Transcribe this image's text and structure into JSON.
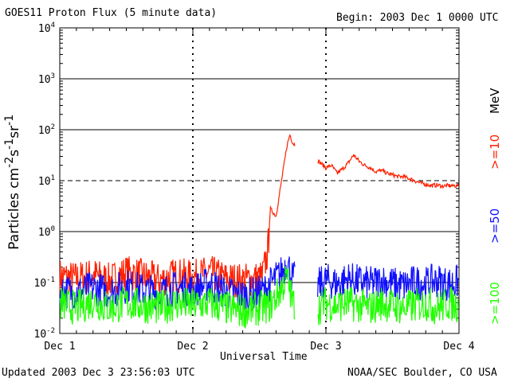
{
  "header": {
    "title": "GOES11 Proton Flux (5 minute data)",
    "begin": "Begin: 2003 Dec 1 0000 UTC"
  },
  "footer": {
    "updated": "Updated 2003 Dec  3 23:56:03 UTC",
    "credit": "NOAA/SEC Boulder, CO USA"
  },
  "chart_data": {
    "type": "line",
    "title": "GOES11 Proton Flux (5 minute data)",
    "xlabel": "Universal Time",
    "ylabel": "Particles cm-2s-1sr-1",
    "yscale": "log",
    "ylim": [
      0.01,
      10000
    ],
    "xlim": [
      0,
      72
    ],
    "x_unit": "hours since 2003 Dec 1 0000 UTC",
    "x_ticks": [
      {
        "value": 0,
        "label": "Dec 1"
      },
      {
        "value": 24,
        "label": "Dec 2"
      },
      {
        "value": 48,
        "label": "Dec 3"
      },
      {
        "value": 72,
        "label": "Dec 4"
      }
    ],
    "y_ticks": [
      {
        "value": 0.01,
        "base": "10",
        "exp": "-2"
      },
      {
        "value": 0.1,
        "base": "10",
        "exp": "-1"
      },
      {
        "value": 1,
        "base": "10",
        "exp": "0"
      },
      {
        "value": 10,
        "base": "10",
        "exp": "1"
      },
      {
        "value": 100,
        "base": "10",
        "exp": "2"
      },
      {
        "value": 1000,
        "base": "10",
        "exp": "3"
      },
      {
        "value": 10000,
        "base": "10",
        "exp": "4"
      }
    ],
    "reference_lines": [
      {
        "value": 10,
        "style": "dashed"
      },
      {
        "value": 0.1,
        "style": "solid"
      }
    ],
    "day_markers": [
      24,
      48
    ],
    "gaps_hours": [
      [
        42.5,
        46.5
      ]
    ],
    "series": [
      {
        "name": ">=10 MeV",
        "color": "#ff2000",
        "points": [
          [
            0,
            0.17
          ],
          [
            3,
            0.15
          ],
          [
            6,
            0.18
          ],
          [
            9,
            0.14
          ],
          [
            12,
            0.2
          ],
          [
            15,
            0.17
          ],
          [
            18,
            0.14
          ],
          [
            21,
            0.18
          ],
          [
            24,
            0.16
          ],
          [
            27,
            0.2
          ],
          [
            30,
            0.15
          ],
          [
            33,
            0.14
          ],
          [
            35,
            0.15
          ],
          [
            36.5,
            0.16
          ],
          [
            37.5,
            0.5
          ],
          [
            38,
            2.8
          ],
          [
            39,
            2.0
          ],
          [
            41,
            50
          ],
          [
            41.5,
            80
          ],
          [
            42,
            55
          ],
          [
            46.5,
            25
          ],
          [
            48,
            18
          ],
          [
            49,
            20
          ],
          [
            50,
            14
          ],
          [
            51,
            17
          ],
          [
            52,
            22
          ],
          [
            53,
            32
          ],
          [
            54,
            24
          ],
          [
            55,
            20
          ],
          [
            56,
            18
          ],
          [
            57,
            15
          ],
          [
            58,
            16
          ],
          [
            59,
            14
          ],
          [
            60,
            13
          ],
          [
            61,
            12
          ],
          [
            62,
            12
          ],
          [
            63,
            11
          ],
          [
            64,
            10
          ],
          [
            65,
            9
          ],
          [
            66,
            8.5
          ],
          [
            67,
            8
          ],
          [
            68,
            8.2
          ],
          [
            69,
            7.8
          ],
          [
            70,
            8
          ],
          [
            71,
            7.9
          ],
          [
            72,
            8
          ]
        ]
      },
      {
        "name": ">=50 MeV",
        "color": "#1010ff",
        "points": [
          [
            0,
            0.09
          ],
          [
            3,
            0.08
          ],
          [
            6,
            0.1
          ],
          [
            9,
            0.08
          ],
          [
            12,
            0.11
          ],
          [
            15,
            0.09
          ],
          [
            18,
            0.08
          ],
          [
            21,
            0.1
          ],
          [
            24,
            0.09
          ],
          [
            27,
            0.12
          ],
          [
            30,
            0.08
          ],
          [
            33,
            0.07
          ],
          [
            36,
            0.08
          ],
          [
            37,
            0.09
          ],
          [
            38,
            0.12
          ],
          [
            40,
            0.2
          ],
          [
            41,
            0.33
          ],
          [
            42,
            0.15
          ],
          [
            46.5,
            0.11
          ],
          [
            48,
            0.14
          ],
          [
            50,
            0.12
          ],
          [
            52,
            0.15
          ],
          [
            54,
            0.13
          ],
          [
            56,
            0.12
          ],
          [
            58,
            0.14
          ],
          [
            60,
            0.12
          ],
          [
            62,
            0.11
          ],
          [
            64,
            0.13
          ],
          [
            66,
            0.12
          ],
          [
            68,
            0.14
          ],
          [
            70,
            0.12
          ],
          [
            72,
            0.13
          ]
        ]
      },
      {
        "name": ">=100 MeV",
        "color": "#20ff00",
        "points": [
          [
            0,
            0.05
          ],
          [
            3,
            0.04
          ],
          [
            6,
            0.055
          ],
          [
            9,
            0.04
          ],
          [
            12,
            0.05
          ],
          [
            15,
            0.045
          ],
          [
            18,
            0.04
          ],
          [
            21,
            0.05
          ],
          [
            24,
            0.045
          ],
          [
            27,
            0.05
          ],
          [
            30,
            0.04
          ],
          [
            33,
            0.035
          ],
          [
            36,
            0.04
          ],
          [
            38,
            0.045
          ],
          [
            40,
            0.1
          ],
          [
            41,
            0.16
          ],
          [
            42,
            0.05
          ],
          [
            46.5,
            0.04
          ],
          [
            48,
            0.05
          ],
          [
            50,
            0.045
          ],
          [
            52,
            0.05
          ],
          [
            54,
            0.045
          ],
          [
            56,
            0.04
          ],
          [
            58,
            0.05
          ],
          [
            60,
            0.045
          ],
          [
            62,
            0.04
          ],
          [
            64,
            0.045
          ],
          [
            66,
            0.05
          ],
          [
            68,
            0.04
          ],
          [
            70,
            0.05
          ],
          [
            72,
            0.045
          ]
        ]
      }
    ],
    "legend": [
      {
        "label": ">=10",
        "color": "#ff2000"
      },
      {
        "label": ">=50",
        "color": "#1010ff"
      },
      {
        "label": ">=100",
        "color": "#20ff00"
      }
    ],
    "legend_unit": "MeV",
    "legend_position": "right"
  }
}
